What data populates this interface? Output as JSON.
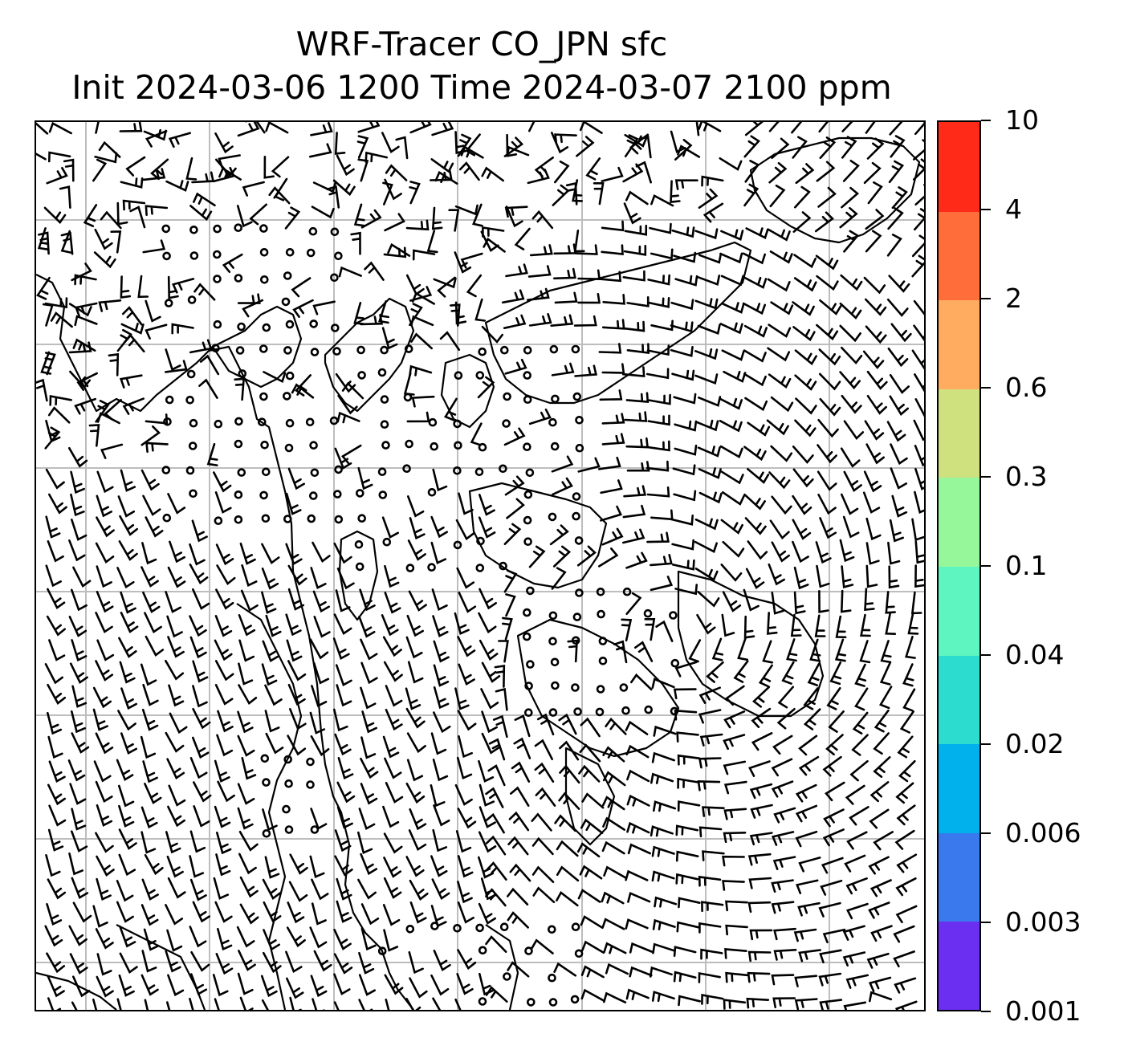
{
  "header": {
    "title_line1": "WRF-Tracer CO_JPN sfc",
    "title_line2": "Init 2024-03-06 1200 Time 2024-03-07 2100 ppm"
  },
  "map": {
    "variable": "CO_JPN",
    "level": "sfc",
    "units": "ppm",
    "gridline_color": "#bdbdbd",
    "coastline_color": "#000000",
    "barb_color": "#000000",
    "background": "#ffffff"
  },
  "colorbar": {
    "levels": [
      "0.001",
      "0.003",
      "0.006",
      "0.02",
      "0.04",
      "0.1",
      "0.3",
      "0.6",
      "2",
      "4",
      "10"
    ],
    "colors": [
      "#6a2ff0",
      "#3a78ee",
      "#00b1eb",
      "#2bdccf",
      "#5ff5c0",
      "#95f79a",
      "#cfe17f",
      "#ffac60",
      "#ff6d3a",
      "#ff2b18"
    ]
  }
}
